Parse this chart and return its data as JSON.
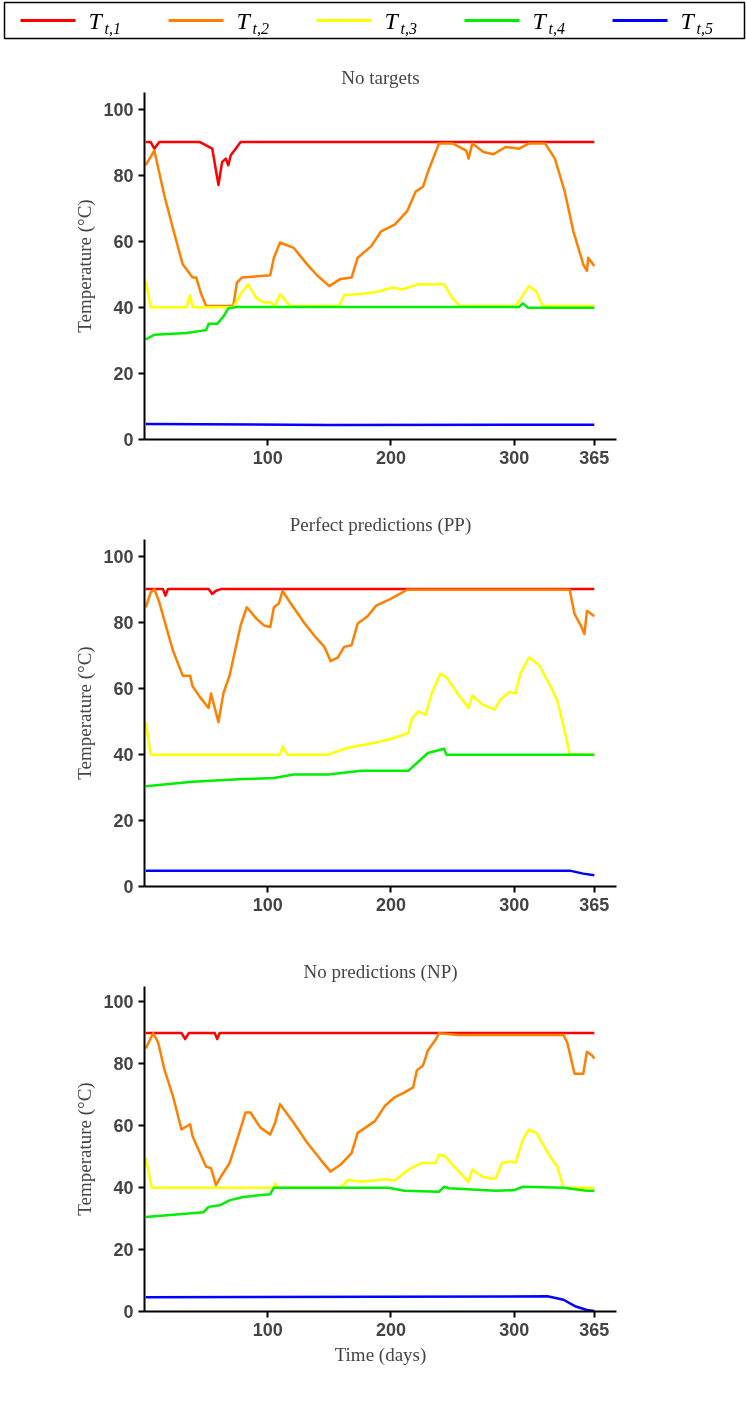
{
  "chart_data": [
    {
      "type": "line",
      "title": "No targets",
      "ylabel": "Temperature (°C)",
      "xlim": [
        0,
        383
      ],
      "xticks": [
        100,
        200,
        300,
        365
      ],
      "ylim": [
        0,
        105
      ],
      "yticks": [
        0,
        20,
        40,
        60,
        80,
        100
      ],
      "grid": false,
      "legend": "top",
      "marker": "none",
      "line_style": "solid",
      "series": [
        {
          "name": "T$_{t,1}$",
          "color": "#ff0000",
          "x": [
            1,
            5,
            8,
            12,
            45,
            50,
            55,
            60,
            63,
            66,
            68,
            70,
            74,
            78,
            300,
            365
          ],
          "values": [
            90,
            90,
            88,
            90,
            90,
            89,
            88,
            77,
            84,
            85,
            83,
            86,
            88,
            90,
            90,
            90
          ]
        },
        {
          "name": "T$_{t,2}$",
          "color": "#ff8000",
          "x": [
            1,
            8,
            16,
            23,
            31,
            39,
            42,
            46,
            50,
            72,
            75,
            79,
            102,
            105,
            110,
            121,
            132,
            140,
            150,
            159,
            168,
            173,
            184,
            192,
            203,
            213,
            220,
            226,
            230,
            239,
            250,
            261,
            263,
            266,
            275,
            283,
            293,
            304,
            312,
            325,
            333,
            341,
            348,
            356,
            359,
            360,
            365
          ],
          "values": [
            83,
            87.4,
            74,
            64,
            53,
            49,
            49,
            44,
            40.4,
            40.4,
            47.5,
            49,
            49.7,
            55,
            59.6,
            58,
            53,
            49.7,
            46.4,
            48.6,
            49,
            55,
            58.5,
            63,
            65,
            69,
            75,
            76.5,
            81,
            89.6,
            89.6,
            87.4,
            85,
            89.6,
            87,
            86.3,
            88.5,
            88,
            89.6,
            89.6,
            85,
            75,
            63,
            53,
            51,
            55,
            52.5
          ]
        },
        {
          "name": "T$_{t,3}$",
          "color": "#ffff00",
          "x": [
            1,
            5,
            34,
            37,
            39,
            72,
            78,
            84,
            91,
            97,
            102,
            106,
            110,
            118,
            158,
            162,
            176,
            190,
            201,
            209,
            222,
            243,
            250,
            256,
            301,
            307,
            312,
            318,
            323,
            365
          ],
          "values": [
            48,
            40,
            40,
            43.7,
            40,
            40,
            44,
            47,
            42.6,
            41.5,
            41.5,
            40.4,
            44,
            40.4,
            40.4,
            43.7,
            44,
            44.8,
            46,
            45.4,
            47,
            47,
            42.6,
            40.4,
            40.4,
            43.7,
            46.4,
            44.8,
            40.4,
            40.4
          ]
        },
        {
          "name": "T$_{t,4}$",
          "color": "#00ee00",
          "x": [
            1,
            8,
            34,
            50,
            52,
            59,
            64,
            68,
            75,
            304,
            307,
            311,
            365
          ],
          "values": [
            30.3,
            31.7,
            32.2,
            33.1,
            35,
            35,
            37.2,
            39.7,
            40.1,
            40.1,
            41.2,
            39.9,
            39.9
          ]
        },
        {
          "name": "T$_{t,5}$",
          "color": "#0000ff",
          "x": [
            1,
            150,
            365
          ],
          "values": [
            4.7,
            4.4,
            4.5
          ]
        }
      ]
    },
    {
      "type": "line",
      "title": "Perfect predictions (PP)",
      "ylabel": "Temperature (°C)",
      "xlim": [
        0,
        383
      ],
      "xticks": [
        100,
        200,
        300,
        365
      ],
      "ylim": [
        0,
        105
      ],
      "yticks": [
        0,
        20,
        40,
        60,
        80,
        100
      ],
      "grid": false,
      "legend": "top",
      "marker": "none",
      "line_style": "solid",
      "series": [
        {
          "name": "T$_{t,1}$",
          "color": "#ff0000",
          "x": [
            1,
            15,
            17,
            19,
            52,
            55,
            58,
            62,
            365
          ],
          "values": [
            90,
            90,
            88,
            90,
            90,
            88.5,
            89.5,
            90,
            90
          ]
        },
        {
          "name": "T$_{t,2}$",
          "color": "#ff8000",
          "x": [
            1,
            5,
            8,
            12,
            16,
            23,
            31,
            37,
            39,
            45,
            52,
            54,
            60,
            64,
            69,
            78,
            83,
            91,
            97,
            102,
            105,
            109,
            112,
            118,
            130,
            138,
            146,
            151,
            157,
            162,
            168,
            173,
            181,
            188,
            198,
            206,
            213,
            345,
            349,
            354,
            357,
            359,
            361,
            365
          ],
          "values": [
            84.5,
            88.9,
            90,
            86,
            80.7,
            71.5,
            63.8,
            63.8,
            60.6,
            57.3,
            54,
            58.4,
            49.7,
            58.4,
            63.8,
            79,
            84.5,
            81,
            79,
            78.5,
            84.5,
            85.6,
            89.4,
            86,
            79.6,
            75.8,
            72.5,
            68.2,
            69.3,
            72.5,
            73,
            79.6,
            81.8,
            85,
            86.7,
            88.3,
            89.8,
            89.8,
            82.4,
            79,
            76.4,
            83.4,
            82.9,
            81.8
          ]
        },
        {
          "name": "T$_{t,3}$",
          "color": "#ffff00",
          "x": [
            1,
            5,
            110,
            112,
            116,
            149,
            165,
            190,
            201,
            214,
            217,
            222,
            228,
            233,
            240,
            245,
            254,
            263,
            266,
            274,
            284,
            288,
            296,
            301,
            305,
            312,
            320,
            331,
            335,
            340,
            345,
            365
          ],
          "values": [
            49.7,
            39.9,
            39.9,
            42.3,
            39.9,
            39.9,
            42,
            43.7,
            44.8,
            46.4,
            50.8,
            53,
            51.9,
            58.4,
            64.4,
            63.3,
            58.4,
            54,
            57.8,
            55.1,
            53.5,
            56.2,
            58.9,
            58.4,
            64.4,
            69.3,
            67.1,
            59.5,
            56.2,
            48.6,
            40.1,
            39.9
          ]
        },
        {
          "name": "T$_{t,4}$",
          "color": "#00ee00",
          "x": [
            1,
            39,
            80,
            105,
            121,
            149,
            176,
            214,
            230,
            243,
            245,
            365
          ],
          "values": [
            30.3,
            31.7,
            32.5,
            32.8,
            33.9,
            33.9,
            35,
            35,
            40.4,
            41.7,
            39.9,
            39.9
          ]
        },
        {
          "name": "T$_{t,5}$",
          "color": "#0000ff",
          "x": [
            1,
            340,
            345,
            356,
            365
          ],
          "values": [
            4.8,
            4.8,
            4.8,
            3.9,
            3.4
          ]
        }
      ]
    },
    {
      "type": "line",
      "title": "No predictions (NP)",
      "xlabel": "Time (days)",
      "ylabel": "Temperature (°C)",
      "xlim": [
        0,
        383
      ],
      "xticks": [
        100,
        200,
        300,
        365
      ],
      "ylim": [
        0,
        105
      ],
      "yticks": [
        0,
        20,
        40,
        60,
        80,
        100
      ],
      "grid": false,
      "legend": "top",
      "marker": "none",
      "line_style": "solid",
      "series": [
        {
          "name": "T$_{t,1}$",
          "color": "#ff0000",
          "x": [
            1,
            30,
            33,
            36,
            57,
            59,
            61,
            365
          ],
          "values": [
            90,
            90,
            88,
            90,
            90,
            88,
            90,
            90
          ]
        },
        {
          "name": "T$_{t,2}$",
          "color": "#ff8000",
          "x": [
            1,
            7,
            11,
            16,
            23,
            30,
            37,
            39,
            45,
            50,
            54,
            58,
            62,
            69,
            76,
            82,
            86,
            94,
            102,
            106,
            110,
            121,
            132,
            143,
            151,
            159,
            168,
            173,
            187,
            195,
            203,
            211,
            218,
            221,
            226,
            230,
            236,
            239,
            255,
            340,
            343,
            349,
            356,
            359,
            363,
            365
          ],
          "values": [
            85,
            89.9,
            87,
            78.4,
            69.7,
            58.8,
            60.5,
            56.6,
            51.2,
            46.8,
            46.3,
            40.8,
            43.6,
            47.9,
            56.6,
            64.3,
            64.3,
            59.4,
            57.2,
            61,
            67,
            61,
            54.5,
            49,
            45.2,
            47.4,
            51.2,
            57.7,
            61.5,
            66.4,
            69.2,
            70.8,
            72.4,
            77.9,
            79.5,
            84.4,
            87.7,
            89.9,
            89.3,
            89.3,
            87,
            76.8,
            76.8,
            83.9,
            82.8,
            81.7
          ]
        },
        {
          "name": "T$_{t,3}$",
          "color": "#ffff00",
          "x": [
            1,
            6,
            105,
            106,
            107,
            159,
            165,
            176,
            195,
            203,
            214,
            225,
            236,
            239,
            244,
            250,
            263,
            266,
            274,
            280,
            285,
            290,
            297,
            301,
            307,
            312,
            318,
            329,
            335,
            340,
            365
          ],
          "values": [
            49.6,
            40,
            40,
            41.4,
            40,
            40,
            42.5,
            41.9,
            42.7,
            42.3,
            45.8,
            48,
            48,
            50.7,
            50.1,
            47.4,
            41.9,
            45.8,
            43.6,
            43,
            43,
            48,
            48.5,
            48,
            55.5,
            58.8,
            57.7,
            50.1,
            46.8,
            40,
            40
          ]
        },
        {
          "name": "T$_{t,4}$",
          "color": "#00ee00",
          "x": [
            1,
            48,
            52,
            61,
            69,
            80,
            102,
            105,
            198,
            211,
            239,
            243,
            247,
            285,
            300,
            307,
            340,
            359,
            365
          ],
          "values": [
            30.5,
            32.1,
            33.8,
            34.3,
            35.9,
            37,
            37.9,
            40,
            40,
            39,
            38.7,
            40.3,
            39.8,
            39,
            39.2,
            40.3,
            40,
            39,
            39
          ]
        },
        {
          "name": "T$_{t,5}$",
          "color": "#0000ff",
          "x": [
            1,
            327,
            340,
            350,
            359,
            365
          ],
          "values": [
            4.6,
            4.9,
            3.8,
            1.6,
            0.5,
            0.2
          ]
        }
      ]
    }
  ]
}
